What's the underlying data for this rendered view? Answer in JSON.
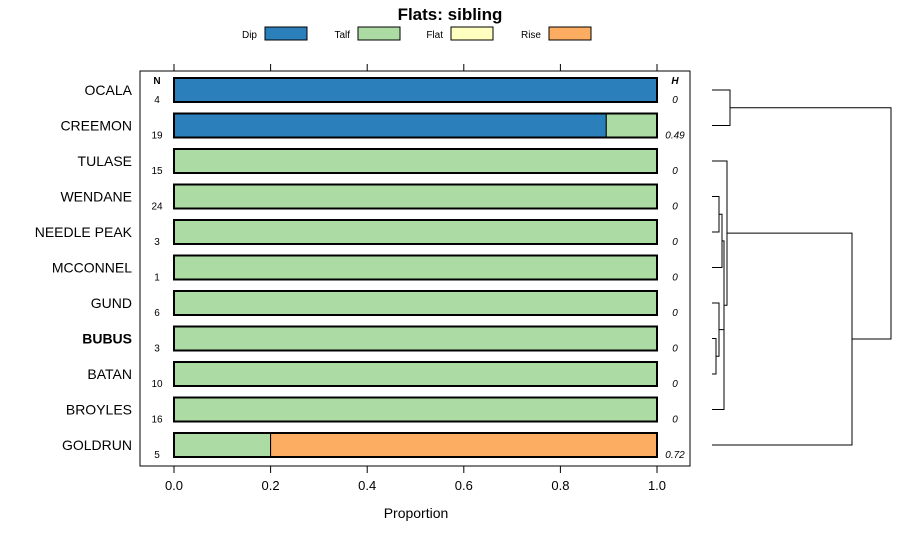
{
  "chart_data": {
    "type": "bar",
    "orientation": "horizontal",
    "stacked": true,
    "title": "Flats: sibling",
    "xlabel": "Proportion",
    "xlim": [
      0,
      1
    ],
    "x_ticks": [
      "0.0",
      "0.2",
      "0.4",
      "0.6",
      "0.8",
      "1.0"
    ],
    "legend": {
      "placement": "top",
      "entries": [
        {
          "name": "Dip",
          "color": "#2b7fbb"
        },
        {
          "name": "Talf",
          "color": "#acdca3"
        },
        {
          "name": "Flat",
          "color": "#ffffbf"
        },
        {
          "name": "Rise",
          "color": "#fdad62"
        }
      ]
    },
    "n_header": "N",
    "h_header": "H",
    "categories": [
      "OCALA",
      "CREEMON",
      "TULASE",
      "WENDANE",
      "NEEDLE PEAK",
      "MCCONNEL",
      "GUND",
      "BUBUS",
      "BATAN",
      "BROYLES",
      "GOLDRUN"
    ],
    "highlighted": "BUBUS",
    "N": [
      "4",
      "19",
      "15",
      "24",
      "3",
      "1",
      "6",
      "3",
      "10",
      "16",
      "5"
    ],
    "H": [
      "0",
      "0.49",
      "0",
      "0",
      "0",
      "0",
      "0",
      "0",
      "0",
      "0",
      "0.72"
    ],
    "series": [
      {
        "name": "Dip",
        "values": [
          1.0,
          0.895,
          0,
          0,
          0,
          0,
          0,
          0,
          0,
          0,
          0
        ]
      },
      {
        "name": "Talf",
        "values": [
          0,
          0.105,
          1,
          1,
          1,
          1,
          1,
          1,
          1,
          1,
          0.2
        ]
      },
      {
        "name": "Flat",
        "values": [
          0,
          0,
          0,
          0,
          0,
          0,
          0,
          0,
          0,
          0,
          0
        ]
      },
      {
        "name": "Rise",
        "values": [
          0,
          0,
          0,
          0,
          0,
          0,
          0,
          0,
          0,
          0,
          0.8
        ]
      }
    ],
    "dendrogram": true
  }
}
